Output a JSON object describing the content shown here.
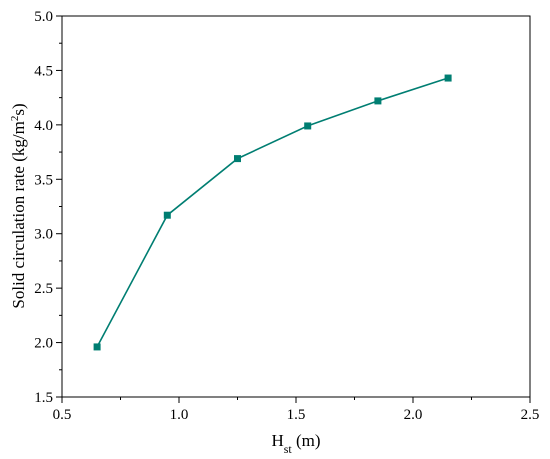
{
  "chart_data": {
    "type": "line",
    "title": "",
    "xlabel": {
      "main": "H",
      "sub": "st",
      "unit": " (m)"
    },
    "ylabel": {
      "main": "Solid circulation rate (kg/m",
      "sup": "2",
      "unit": "s)"
    },
    "xlim": [
      0.5,
      2.5
    ],
    "ylim": [
      1.5,
      5.0
    ],
    "xticks": [
      "0.5",
      "1.0",
      "1.5",
      "2.0",
      "2.5"
    ],
    "yticks": [
      "1.5",
      "2.0",
      "2.5",
      "3.0",
      "3.5",
      "4.0",
      "4.5",
      "5.0"
    ],
    "grid": false,
    "series": [
      {
        "x": [
          0.65,
          0.95,
          1.25,
          1.55,
          1.85,
          2.15
        ],
        "values": [
          1.96,
          3.17,
          3.69,
          3.99,
          4.22,
          4.43
        ],
        "color": "#007e72",
        "marker": "square"
      }
    ]
  }
}
